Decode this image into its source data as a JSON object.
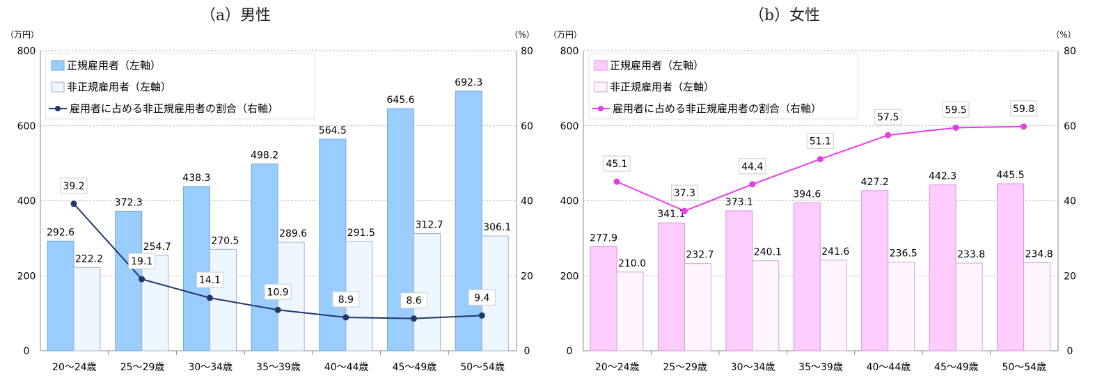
{
  "panels": [
    {
      "title": "（a）男性",
      "left_axis_unit": "（万円）",
      "right_axis_unit": "（%）",
      "colors": {
        "regular_fill": "#99CCFF",
        "regular_stroke": "#6FA6DC",
        "nonregular_fill": "#EEF6FF",
        "nonregular_stroke": "#9FB4CC",
        "line": "#1F3864"
      }
    },
    {
      "title": "（b）女性",
      "left_axis_unit": "（万円）",
      "right_axis_unit": "（%）",
      "colors": {
        "regular_fill": "#FFCCFF",
        "regular_stroke": "#D98FD9",
        "nonregular_fill": "#FFF4FF",
        "nonregular_stroke": "#C9A8C9",
        "line": "#E83CE8"
      }
    }
  ],
  "chart_data": [
    {
      "type": "bar",
      "categories": [
        "20～24歳",
        "25～29歳",
        "30～34歳",
        "35～39歳",
        "40～44歳",
        "45～49歳",
        "50～54歳"
      ],
      "series": [
        {
          "name": "正規雇用者（左軸）",
          "axis": "left",
          "kind": "bar",
          "values": [
            292.6,
            372.3,
            438.3,
            498.2,
            564.5,
            645.6,
            692.3
          ],
          "labels": [
            "292.6",
            "372.3",
            "438.3",
            "498.2",
            "564.5",
            "645.6",
            "692.3"
          ]
        },
        {
          "name": "非正規雇用者（左軸）",
          "axis": "left",
          "kind": "bar",
          "values": [
            222.2,
            254.7,
            270.5,
            289.6,
            291.5,
            312.7,
            306.1
          ],
          "labels": [
            "222.2",
            "254.7",
            "270.5",
            "289.6",
            "291.5",
            "312.7",
            "306.1"
          ]
        },
        {
          "name": "雇用者に占める非正規雇用者の割合（右軸）",
          "axis": "right",
          "kind": "line",
          "values": [
            39.2,
            19.1,
            14.1,
            10.9,
            8.9,
            8.6,
            9.4
          ],
          "labels": [
            "39.2",
            "19.1",
            "14.1",
            "10.9",
            "8.9",
            "8.6",
            "9.4"
          ]
        }
      ],
      "ylim_left": [
        0,
        800
      ],
      "yticks_left": [
        "0",
        "200",
        "400",
        "600",
        "800"
      ],
      "ylim_right": [
        0,
        80
      ],
      "yticks_right": [
        "0",
        "20",
        "40",
        "60",
        "80"
      ],
      "grid": true,
      "legend_position": "top-left"
    },
    {
      "type": "bar",
      "categories": [
        "20～24歳",
        "25～29歳",
        "30～34歳",
        "35～39歳",
        "40～44歳",
        "45～49歳",
        "50～54歳"
      ],
      "series": [
        {
          "name": "正規雇用者（左軸）",
          "axis": "left",
          "kind": "bar",
          "values": [
            277.9,
            341.1,
            373.1,
            394.6,
            427.2,
            442.3,
            445.5
          ],
          "labels": [
            "277.9",
            "341.1",
            "373.1",
            "394.6",
            "427.2",
            "442.3",
            "445.5"
          ]
        },
        {
          "name": "非正規雇用者（左軸）",
          "axis": "left",
          "kind": "bar",
          "values": [
            210.0,
            232.7,
            240.1,
            241.6,
            236.5,
            233.8,
            234.8
          ],
          "labels": [
            "210.0",
            "232.7",
            "240.1",
            "241.6",
            "236.5",
            "233.8",
            "234.8"
          ]
        },
        {
          "name": "雇用者に占める非正規雇用者の割合（右軸）",
          "axis": "right",
          "kind": "line",
          "values": [
            45.1,
            37.3,
            44.4,
            51.1,
            57.5,
            59.5,
            59.8
          ],
          "labels": [
            "45.1",
            "37.3",
            "44.4",
            "51.1",
            "57.5",
            "59.5",
            "59.8"
          ]
        }
      ],
      "ylim_left": [
        0,
        800
      ],
      "yticks_left": [
        "0",
        "200",
        "400",
        "600",
        "800"
      ],
      "ylim_right": [
        0,
        80
      ],
      "yticks_right": [
        "0",
        "20",
        "40",
        "60",
        "80"
      ],
      "grid": true,
      "legend_position": "top-left"
    }
  ]
}
